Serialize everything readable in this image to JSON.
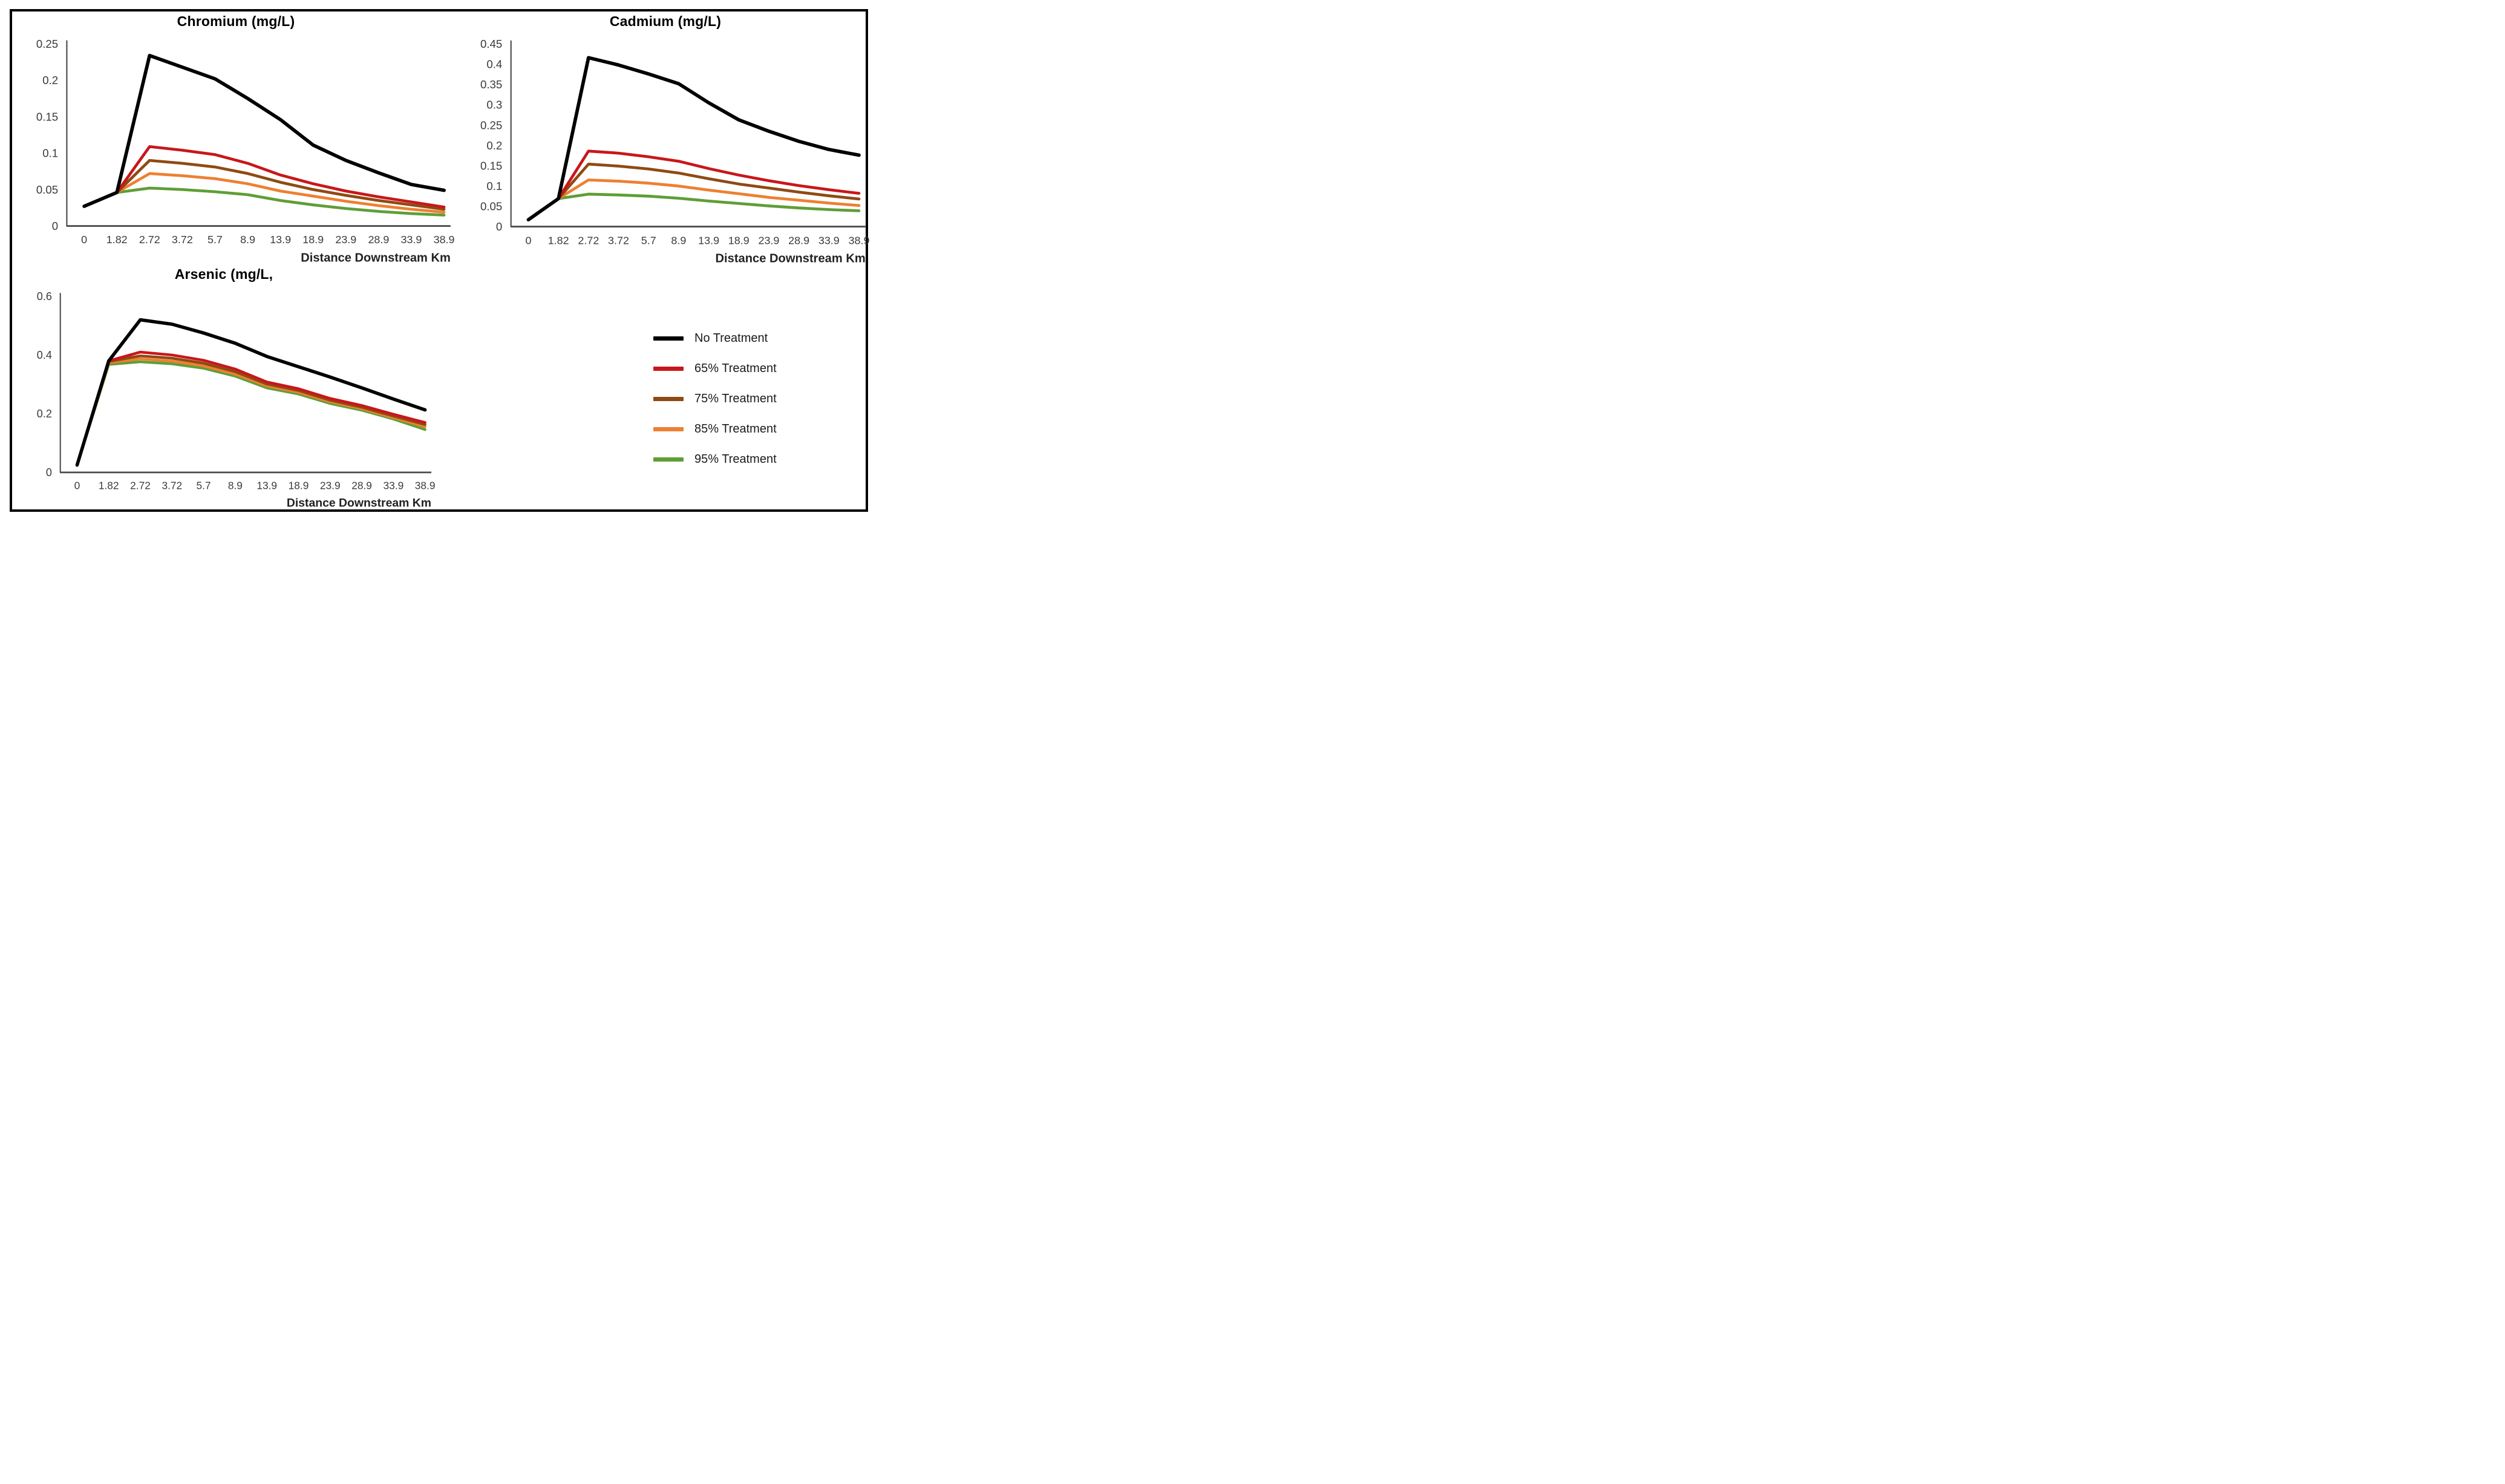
{
  "legend": {
    "items": [
      {
        "label": "No Treatment",
        "color": "#000000"
      },
      {
        "label": "65% Treatment",
        "color": "#C8171B"
      },
      {
        "label": "75% Treatment",
        "color": "#8F4A12"
      },
      {
        "label": "85% Treatment",
        "color": "#ED8032"
      },
      {
        "label": "95% Treatment",
        "color": "#5F9E37"
      }
    ]
  },
  "chart_data": [
    {
      "id": "chromium",
      "type": "line",
      "title": "Chromium (mg/L)",
      "xlabel": "Distance Downstream Km",
      "categories": [
        "0",
        "1.82",
        "2.72",
        "3.72",
        "5.7",
        "8.9",
        "13.9",
        "18.9",
        "23.9",
        "28.9",
        "33.9",
        "38.9"
      ],
      "ylim": [
        0,
        0.25
      ],
      "y_ticks": [
        0,
        0.05,
        0.1,
        0.15,
        0.2,
        0.25
      ],
      "y_tick_labels": [
        "0",
        "0.05",
        "0.1",
        "0.15",
        "0.2",
        "0.25"
      ],
      "grid": false,
      "legend_position": "none",
      "series": [
        {
          "name": "No Treatment",
          "color": "#000000",
          "values": [
            0.027,
            0.046,
            0.234,
            0.218,
            0.202,
            0.175,
            0.146,
            0.111,
            0.09,
            0.073,
            0.057,
            0.049
          ]
        },
        {
          "name": "65% Treatment",
          "color": "#C8171B",
          "values": [
            0.027,
            0.046,
            0.109,
            0.104,
            0.098,
            0.086,
            0.07,
            0.058,
            0.048,
            0.04,
            0.033,
            0.026
          ]
        },
        {
          "name": "75% Treatment",
          "color": "#8F4A12",
          "values": [
            0.027,
            0.046,
            0.09,
            0.086,
            0.081,
            0.072,
            0.06,
            0.05,
            0.042,
            0.035,
            0.029,
            0.023
          ]
        },
        {
          "name": "85% Treatment",
          "color": "#ED8032",
          "values": [
            0.027,
            0.046,
            0.072,
            0.069,
            0.065,
            0.058,
            0.048,
            0.041,
            0.034,
            0.028,
            0.023,
            0.019
          ]
        },
        {
          "name": "95% Treatment",
          "color": "#5F9E37",
          "values": [
            0.027,
            0.046,
            0.052,
            0.05,
            0.047,
            0.043,
            0.035,
            0.029,
            0.024,
            0.02,
            0.017,
            0.015
          ]
        }
      ]
    },
    {
      "id": "cadmium",
      "type": "line",
      "title": "Cadmium (mg/L)",
      "xlabel": "Distance Downstream Km",
      "categories": [
        "0",
        "1.82",
        "2.72",
        "3.72",
        "5.7",
        "8.9",
        "13.9",
        "18.9",
        "23.9",
        "28.9",
        "33.9",
        "38.9"
      ],
      "ylim": [
        0,
        0.45
      ],
      "y_ticks": [
        0,
        0.05,
        0.1,
        0.15,
        0.2,
        0.25,
        0.3,
        0.35,
        0.4,
        0.45
      ],
      "y_tick_labels": [
        "0",
        "0.05",
        "0.1",
        "0.15",
        "0.2",
        "0.25",
        "0.3",
        "0.35",
        "0.4",
        "0.45"
      ],
      "grid": false,
      "legend_position": "none",
      "series": [
        {
          "name": "No Treatment",
          "color": "#000000",
          "values": [
            0.017,
            0.069,
            0.416,
            0.398,
            0.376,
            0.352,
            0.305,
            0.263,
            0.235,
            0.21,
            0.19,
            0.176
          ]
        },
        {
          "name": "65% Treatment",
          "color": "#C8171B",
          "values": [
            0.017,
            0.069,
            0.186,
            0.181,
            0.172,
            0.161,
            0.143,
            0.127,
            0.113,
            0.101,
            0.091,
            0.082
          ]
        },
        {
          "name": "75% Treatment",
          "color": "#8F4A12",
          "values": [
            0.017,
            0.069,
            0.154,
            0.149,
            0.142,
            0.132,
            0.118,
            0.105,
            0.095,
            0.085,
            0.076,
            0.068
          ]
        },
        {
          "name": "85% Treatment",
          "color": "#ED8032",
          "values": [
            0.017,
            0.069,
            0.115,
            0.112,
            0.107,
            0.1,
            0.09,
            0.081,
            0.072,
            0.065,
            0.058,
            0.052
          ]
        },
        {
          "name": "95% Treatment",
          "color": "#5F9E37",
          "values": [
            0.017,
            0.069,
            0.08,
            0.078,
            0.075,
            0.07,
            0.063,
            0.057,
            0.051,
            0.046,
            0.042,
            0.039
          ]
        }
      ]
    },
    {
      "id": "arsenic",
      "type": "line",
      "title": "Arsenic (mg/L,",
      "xlabel": "Distance Downstream Km",
      "categories": [
        "0",
        "1.82",
        "2.72",
        "3.72",
        "5.7",
        "8.9",
        "13.9",
        "18.9",
        "23.9",
        "28.9",
        "33.9",
        "38.9"
      ],
      "ylim": [
        0,
        0.6
      ],
      "y_ticks": [
        0,
        0.2,
        0.4,
        0.6
      ],
      "y_tick_labels": [
        "0",
        "0.2",
        "0.4",
        "0.6"
      ],
      "grid": false,
      "legend_position": "none",
      "series": [
        {
          "name": "No Treatment",
          "color": "#000000",
          "values": [
            0.025,
            0.38,
            0.52,
            0.505,
            0.475,
            0.44,
            0.395,
            0.36,
            0.325,
            0.288,
            0.25,
            0.213
          ]
        },
        {
          "name": "65% Treatment",
          "color": "#C8171B",
          "values": [
            0.025,
            0.38,
            0.41,
            0.4,
            0.382,
            0.352,
            0.308,
            0.285,
            0.252,
            0.228,
            0.198,
            0.17
          ]
        },
        {
          "name": "75% Treatment",
          "color": "#8F4A12",
          "values": [
            0.025,
            0.378,
            0.397,
            0.389,
            0.372,
            0.343,
            0.301,
            0.279,
            0.246,
            0.222,
            0.192,
            0.163
          ]
        },
        {
          "name": "85% Treatment",
          "color": "#ED8032",
          "values": [
            0.025,
            0.374,
            0.387,
            0.379,
            0.363,
            0.335,
            0.295,
            0.273,
            0.241,
            0.217,
            0.187,
            0.156
          ]
        },
        {
          "name": "95% Treatment",
          "color": "#5F9E37",
          "values": [
            0.025,
            0.368,
            0.377,
            0.37,
            0.355,
            0.328,
            0.288,
            0.267,
            0.235,
            0.212,
            0.182,
            0.146
          ]
        }
      ]
    }
  ]
}
